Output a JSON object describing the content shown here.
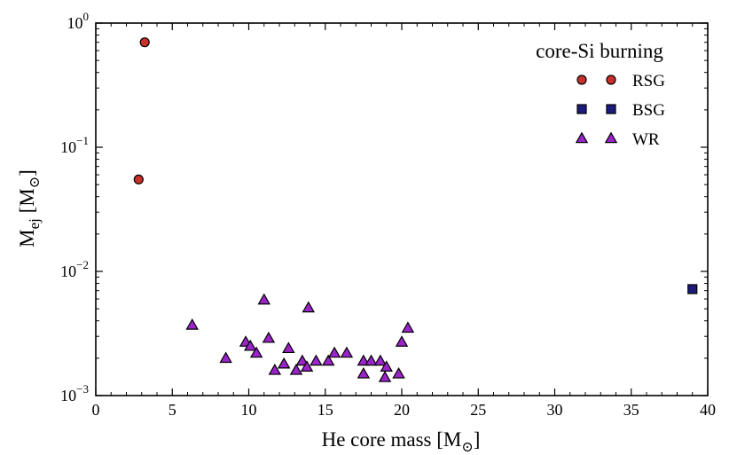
{
  "chart_data": {
    "type": "scatter",
    "title": "",
    "xlabel": "He core mass [M",
    "xlabel_sub": "⊙",
    "xlabel_close": "]",
    "ylabel": "M",
    "ylabel_sub": "ej",
    "ylabel_unit": " [M",
    "ylabel_unit_sub": "⊙",
    "ylabel_close": "]",
    "xlim": [
      0,
      40
    ],
    "ylim": [
      0.001,
      1
    ],
    "yscale": "log",
    "x_ticks": [
      {
        "value": 0,
        "label": "0"
      },
      {
        "value": 5,
        "label": "5"
      },
      {
        "value": 10,
        "label": "10"
      },
      {
        "value": 15,
        "label": "15"
      },
      {
        "value": 20,
        "label": "20"
      },
      {
        "value": 25,
        "label": "25"
      },
      {
        "value": 30,
        "label": "30"
      },
      {
        "value": 35,
        "label": "35"
      },
      {
        "value": 40,
        "label": "40"
      }
    ],
    "y_ticks": [
      {
        "value": 1,
        "base": "10",
        "exp": "0"
      },
      {
        "value": 0.1,
        "base": "10",
        "exp": "−1"
      },
      {
        "value": 0.01,
        "base": "10",
        "exp": "−2"
      },
      {
        "value": 0.001,
        "base": "10",
        "exp": "−3"
      }
    ],
    "legend": {
      "title": "core-Si burning",
      "position": "top-right"
    },
    "series": [
      {
        "name": "RSG",
        "marker": "circle",
        "color": "#c8302a",
        "points": [
          {
            "x": 2.8,
            "y": 0.055
          },
          {
            "x": 3.2,
            "y": 0.7
          }
        ]
      },
      {
        "name": "BSG",
        "marker": "square",
        "color": "#1c1a7a",
        "points": [
          {
            "x": 39.0,
            "y": 0.0072
          }
        ]
      },
      {
        "name": "WR",
        "marker": "triangle",
        "color": "#9a24c8",
        "points": [
          {
            "x": 6.3,
            "y": 0.0037
          },
          {
            "x": 8.5,
            "y": 0.002
          },
          {
            "x": 9.8,
            "y": 0.0027
          },
          {
            "x": 10.1,
            "y": 0.0025
          },
          {
            "x": 10.5,
            "y": 0.0022
          },
          {
            "x": 11.0,
            "y": 0.0059
          },
          {
            "x": 11.3,
            "y": 0.0029
          },
          {
            "x": 11.7,
            "y": 0.0016
          },
          {
            "x": 12.3,
            "y": 0.0018
          },
          {
            "x": 12.6,
            "y": 0.0024
          },
          {
            "x": 13.1,
            "y": 0.0016
          },
          {
            "x": 13.5,
            "y": 0.0019
          },
          {
            "x": 13.8,
            "y": 0.0017
          },
          {
            "x": 13.9,
            "y": 0.0051
          },
          {
            "x": 14.4,
            "y": 0.0019
          },
          {
            "x": 15.2,
            "y": 0.0019
          },
          {
            "x": 15.6,
            "y": 0.0022
          },
          {
            "x": 16.4,
            "y": 0.0022
          },
          {
            "x": 17.5,
            "y": 0.0019
          },
          {
            "x": 17.5,
            "y": 0.0015
          },
          {
            "x": 18.0,
            "y": 0.0019
          },
          {
            "x": 18.6,
            "y": 0.0019
          },
          {
            "x": 18.9,
            "y": 0.0014
          },
          {
            "x": 19.0,
            "y": 0.0017
          },
          {
            "x": 19.8,
            "y": 0.0015
          },
          {
            "x": 20.0,
            "y": 0.0027
          },
          {
            "x": 20.4,
            "y": 0.0035
          }
        ]
      }
    ]
  }
}
